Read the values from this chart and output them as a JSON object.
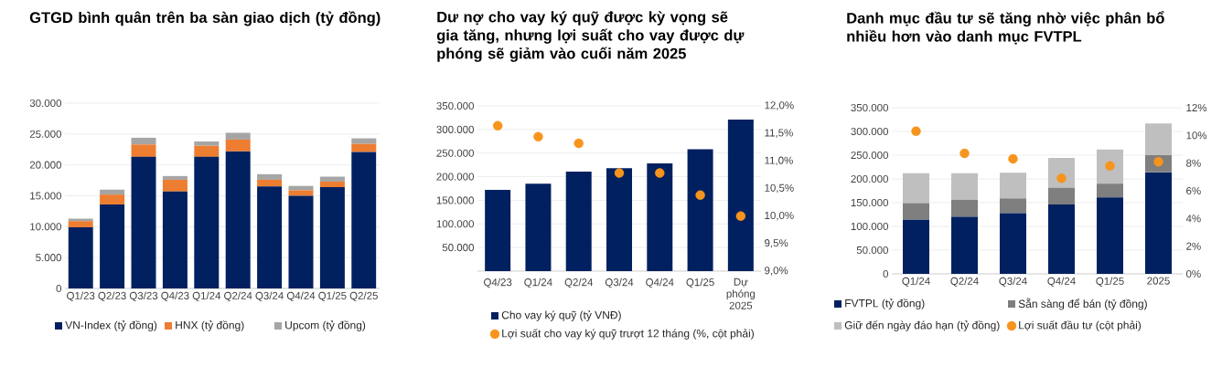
{
  "chart_data": [
    {
      "type": "bar",
      "title": "GTGD bình quân trên ba sàn giao dịch (tỷ đồng)",
      "categories": [
        "Q1/23",
        "Q2/23",
        "Q3/23",
        "Q4/23",
        "Q1/24",
        "Q2/24",
        "Q3/24",
        "Q4/24",
        "Q1/25",
        "Q2/25"
      ],
      "stacked": true,
      "series": [
        {
          "name": "VN-Index (tỷ đồng)",
          "color": "#002060",
          "values": [
            9900,
            13600,
            21300,
            15700,
            21300,
            22200,
            16500,
            15000,
            16400,
            22100
          ]
        },
        {
          "name": "HNX (tỷ đồng)",
          "color": "#ed7d31",
          "values": [
            1000,
            1600,
            2000,
            1900,
            1800,
            1900,
            1100,
            900,
            900,
            1300
          ]
        },
        {
          "name": "Upcom (tỷ đồng)",
          "color": "#a5a5a5",
          "values": [
            400,
            800,
            1100,
            600,
            700,
            1100,
            900,
            700,
            800,
            900
          ]
        }
      ],
      "ylim": [
        0,
        30000
      ],
      "yticks": [
        0,
        {
          "value": 5000,
          "label": "5.000"
        },
        {
          "value": 10000,
          "label": "10.000"
        },
        {
          "value": 15000,
          "label": "15.000"
        },
        {
          "value": 20000,
          "label": "20.000"
        },
        {
          "value": 25000,
          "label": "25.000"
        },
        {
          "value": 30000,
          "label": "30.000"
        }
      ],
      "grid": "y",
      "legend": "bottom"
    },
    {
      "type": "bar",
      "title": "Dư nợ cho vay ký quỹ được kỳ vọng sẽ gia tăng, nhưng lợi suất cho vay được dự phóng sẽ giảm vào cuối năm 2025",
      "categories": [
        "Q4/23",
        "Q1/24",
        "Q2/24",
        "Q3/24",
        "Q4/24",
        "Q1/25",
        "Dự phóng 2025"
      ],
      "series": [
        {
          "name": "Cho vay ký quỹ (tỷ VNĐ)",
          "color": "#002060",
          "values": [
            172000,
            185000,
            211000,
            218000,
            228000,
            258000,
            321000
          ]
        },
        {
          "name": "Lợi suất cho vay ký quỹ trượt 12 tháng (%, cột phải)",
          "type": "scatter",
          "axis": "y2",
          "color": "#f7941d",
          "values": [
            11.64,
            11.44,
            11.32,
            10.78,
            10.78,
            10.38,
            10.0
          ]
        }
      ],
      "ylim": [
        0,
        350000
      ],
      "yticks": [
        {
          "value": 0,
          "label": null
        },
        {
          "value": 50000,
          "label": "50.000"
        },
        {
          "value": 100000,
          "label": "100.000"
        },
        {
          "value": 150000,
          "label": "150.000"
        },
        {
          "value": 200000,
          "label": "200.000"
        },
        {
          "value": 250000,
          "label": "250.000"
        },
        {
          "value": 300000,
          "label": "300.000"
        },
        {
          "value": 350000,
          "label": "350.000"
        }
      ],
      "y2lim": [
        9,
        12
      ],
      "y2ticks": [
        {
          "value": 9,
          "label": "9,0%"
        },
        {
          "value": 9.5,
          "label": "9,5%"
        },
        {
          "value": 10,
          "label": "10,0%"
        },
        {
          "value": 10.5,
          "label": "10,5%"
        },
        {
          "value": 11,
          "label": "11,0%"
        },
        {
          "value": 11.5,
          "label": "11,5%"
        },
        {
          "value": 12,
          "label": "12,0%"
        }
      ],
      "grid": "y",
      "legend": "bottom",
      "marker": "circle"
    },
    {
      "type": "bar",
      "title": "Danh mục đầu tư sẽ tăng nhờ việc phân bổ nhiều hơn vào danh mục FVTPL",
      "categories": [
        "Q1/24",
        "Q2/24",
        "Q3/24",
        "Q4/24",
        "Q1/25",
        "2025"
      ],
      "stacked": true,
      "series": [
        {
          "name": "FVTPL (tỷ đồng)",
          "color": "#002060",
          "values": [
            114000,
            120000,
            128000,
            146000,
            161000,
            214000
          ]
        },
        {
          "name": "Sẵn sàng để bán (tỷ đồng)",
          "color": "#7f7f7f",
          "values": [
            35000,
            36000,
            31000,
            35000,
            29000,
            36000
          ]
        },
        {
          "name": "Giữ đến ngày đáo hạn (tỷ đồng)",
          "color": "#bfbfbf",
          "values": [
            63000,
            56000,
            54000,
            63000,
            72000,
            67000
          ]
        },
        {
          "name": "Lợi suất đầu tư (cột phải)",
          "type": "scatter",
          "axis": "y2",
          "color": "#f7941d",
          "values": [
            10.3,
            8.7,
            8.3,
            6.9,
            7.8,
            8.1
          ]
        }
      ],
      "ylim": [
        0,
        350000
      ],
      "yticks": [
        0,
        {
          "value": 50000,
          "label": "50.000"
        },
        {
          "value": 100000,
          "label": "100.000"
        },
        {
          "value": 150000,
          "label": "150.000"
        },
        {
          "value": 200000,
          "label": "200.000"
        },
        {
          "value": 250000,
          "label": "250.000"
        },
        {
          "value": 300000,
          "label": "300.000"
        },
        {
          "value": 350000,
          "label": "350.000"
        }
      ],
      "y2lim": [
        0,
        12
      ],
      "y2ticks": [
        {
          "value": 0,
          "label": "0%"
        },
        {
          "value": 2,
          "label": "2%"
        },
        {
          "value": 4,
          "label": "4%"
        },
        {
          "value": 6,
          "label": "6%"
        },
        {
          "value": 8,
          "label": "8%"
        },
        {
          "value": 10,
          "label": "10%"
        },
        {
          "value": 12,
          "label": "12%"
        }
      ],
      "grid": "y",
      "legend": "bottom",
      "marker": "circle"
    }
  ]
}
